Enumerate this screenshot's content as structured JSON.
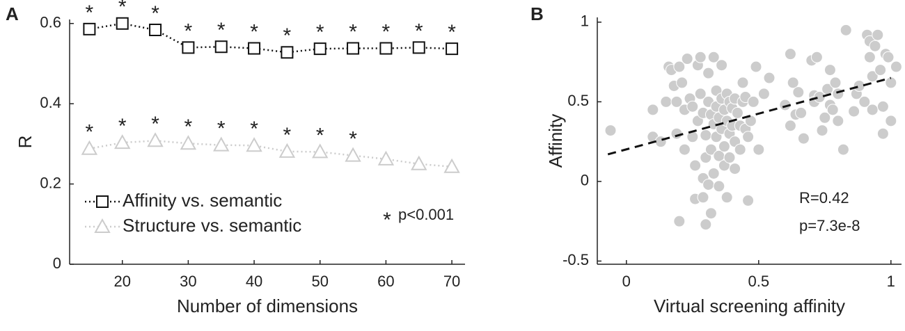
{
  "chart_data": [
    {
      "type": "line",
      "panel_label": "A",
      "xlabel": "Number of dimensions",
      "ylabel": "R",
      "x": [
        15,
        20,
        25,
        30,
        35,
        40,
        45,
        50,
        55,
        60,
        65,
        70
      ],
      "series": [
        {
          "name": "Affinity vs. semantic",
          "color": "#111111",
          "marker": "square",
          "line_style": "dotted",
          "values": [
            0.586,
            0.6,
            0.584,
            0.54,
            0.542,
            0.538,
            0.528,
            0.537,
            0.538,
            0.538,
            0.54,
            0.537
          ],
          "significant": [
            true,
            true,
            true,
            true,
            true,
            true,
            true,
            true,
            true,
            true,
            true,
            true
          ]
        },
        {
          "name": "Structure vs. semantic",
          "color": "#cccccc",
          "marker": "triangle",
          "line_style": "dotted",
          "values": [
            0.288,
            0.303,
            0.308,
            0.301,
            0.297,
            0.296,
            0.281,
            0.28,
            0.271,
            0.262,
            0.25,
            0.243
          ],
          "significant": [
            true,
            true,
            true,
            true,
            true,
            true,
            true,
            true,
            true,
            false,
            false,
            false
          ]
        }
      ],
      "significance_marker": "*",
      "significance_note": "p<0.001",
      "xlim": [
        12,
        72
      ],
      "ylim": [
        0,
        0.61
      ],
      "xticks": [
        20,
        30,
        40,
        50,
        60,
        70
      ],
      "yticks": [
        0,
        0.2,
        0.4,
        0.6
      ],
      "legend": "lower left"
    },
    {
      "type": "scatter",
      "panel_label": "B",
      "xlabel": "Virtual screening affinity",
      "ylabel": "Affinity",
      "color": "#cccccc",
      "x": [
        -0.06,
        0.1,
        0.1,
        0.13,
        0.15,
        0.16,
        0.17,
        0.18,
        0.19,
        0.19,
        0.2,
        0.21,
        0.2,
        0.22,
        0.22,
        0.23,
        0.24,
        0.25,
        0.25,
        0.26,
        0.26,
        0.27,
        0.27,
        0.28,
        0.28,
        0.29,
        0.29,
        0.29,
        0.3,
        0.3,
        0.3,
        0.31,
        0.31,
        0.31,
        0.32,
        0.32,
        0.32,
        0.33,
        0.33,
        0.33,
        0.34,
        0.34,
        0.34,
        0.35,
        0.35,
        0.35,
        0.36,
        0.36,
        0.36,
        0.37,
        0.37,
        0.37,
        0.38,
        0.38,
        0.38,
        0.39,
        0.39,
        0.39,
        0.4,
        0.4,
        0.41,
        0.41,
        0.41,
        0.42,
        0.43,
        0.43,
        0.44,
        0.44,
        0.45,
        0.45,
        0.46,
        0.46,
        0.47,
        0.48,
        0.49,
        0.5,
        0.52,
        0.54,
        0.6,
        0.62,
        0.62,
        0.63,
        0.64,
        0.65,
        0.66,
        0.67,
        0.7,
        0.71,
        0.71,
        0.72,
        0.73,
        0.74,
        0.75,
        0.76,
        0.77,
        0.77,
        0.78,
        0.79,
        0.8,
        0.8,
        0.82,
        0.83,
        0.86,
        0.87,
        0.88,
        0.9,
        0.91,
        0.92,
        0.92,
        0.93,
        0.93,
        0.94,
        0.95,
        0.96,
        0.97,
        0.97,
        0.98,
        0.99,
        1.0,
        1.0,
        1.02
      ],
      "values": [
        0.32,
        0.45,
        0.28,
        0.25,
        0.5,
        0.72,
        0.7,
        0.6,
        0.5,
        0.3,
        0.72,
        0.62,
        -0.25,
        0.2,
        0.45,
        0.77,
        0.52,
        0.47,
        0.28,
        0.1,
        -0.11,
        0.73,
        0.38,
        0.78,
        0.55,
        0.43,
        0.02,
        -0.1,
        0.29,
        0.15,
        -0.27,
        0.68,
        0.5,
        -0.02,
        0.42,
        0.2,
        -0.2,
        0.78,
        0.36,
        0.05,
        0.57,
        0.47,
        0.28,
        0.4,
        0.16,
        -0.03,
        0.52,
        0.33,
        0.73,
        0.45,
        0.22,
        0.1,
        0.55,
        0.38,
        -0.1,
        0.5,
        0.3,
        0.15,
        0.46,
        0.35,
        0.52,
        0.25,
        0.08,
        0.43,
        0.35,
        0.2,
        0.62,
        0.5,
        0.53,
        0.33,
        0.28,
        -0.12,
        0.38,
        0.5,
        0.72,
        0.2,
        0.55,
        0.65,
        0.48,
        0.8,
        0.35,
        0.62,
        0.42,
        0.56,
        0.43,
        0.27,
        0.76,
        0.54,
        0.5,
        0.78,
        0.53,
        0.32,
        0.4,
        0.58,
        0.7,
        0.48,
        0.45,
        0.62,
        0.38,
        0.55,
        0.2,
        0.95,
        0.44,
        0.55,
        0.6,
        0.5,
        0.92,
        0.88,
        0.78,
        0.66,
        0.45,
        0.85,
        0.92,
        0.7,
        0.47,
        0.3,
        0.8,
        0.78,
        0.62,
        0.38,
        0.72
      ],
      "fit_line": {
        "x": [
          -0.07,
          1
        ],
        "y": [
          0.17,
          0.65
        ],
        "color": "#111111",
        "line_style": "dashed"
      },
      "annotations": [
        "R=0.42",
        "p=7.3e-8"
      ],
      "xlim": [
        -0.11,
        1.04
      ],
      "ylim": [
        -0.52,
        1.03
      ],
      "xticks": [
        0,
        0.5,
        1
      ],
      "yticks": [
        -0.5,
        0,
        0.5,
        1
      ]
    }
  ]
}
